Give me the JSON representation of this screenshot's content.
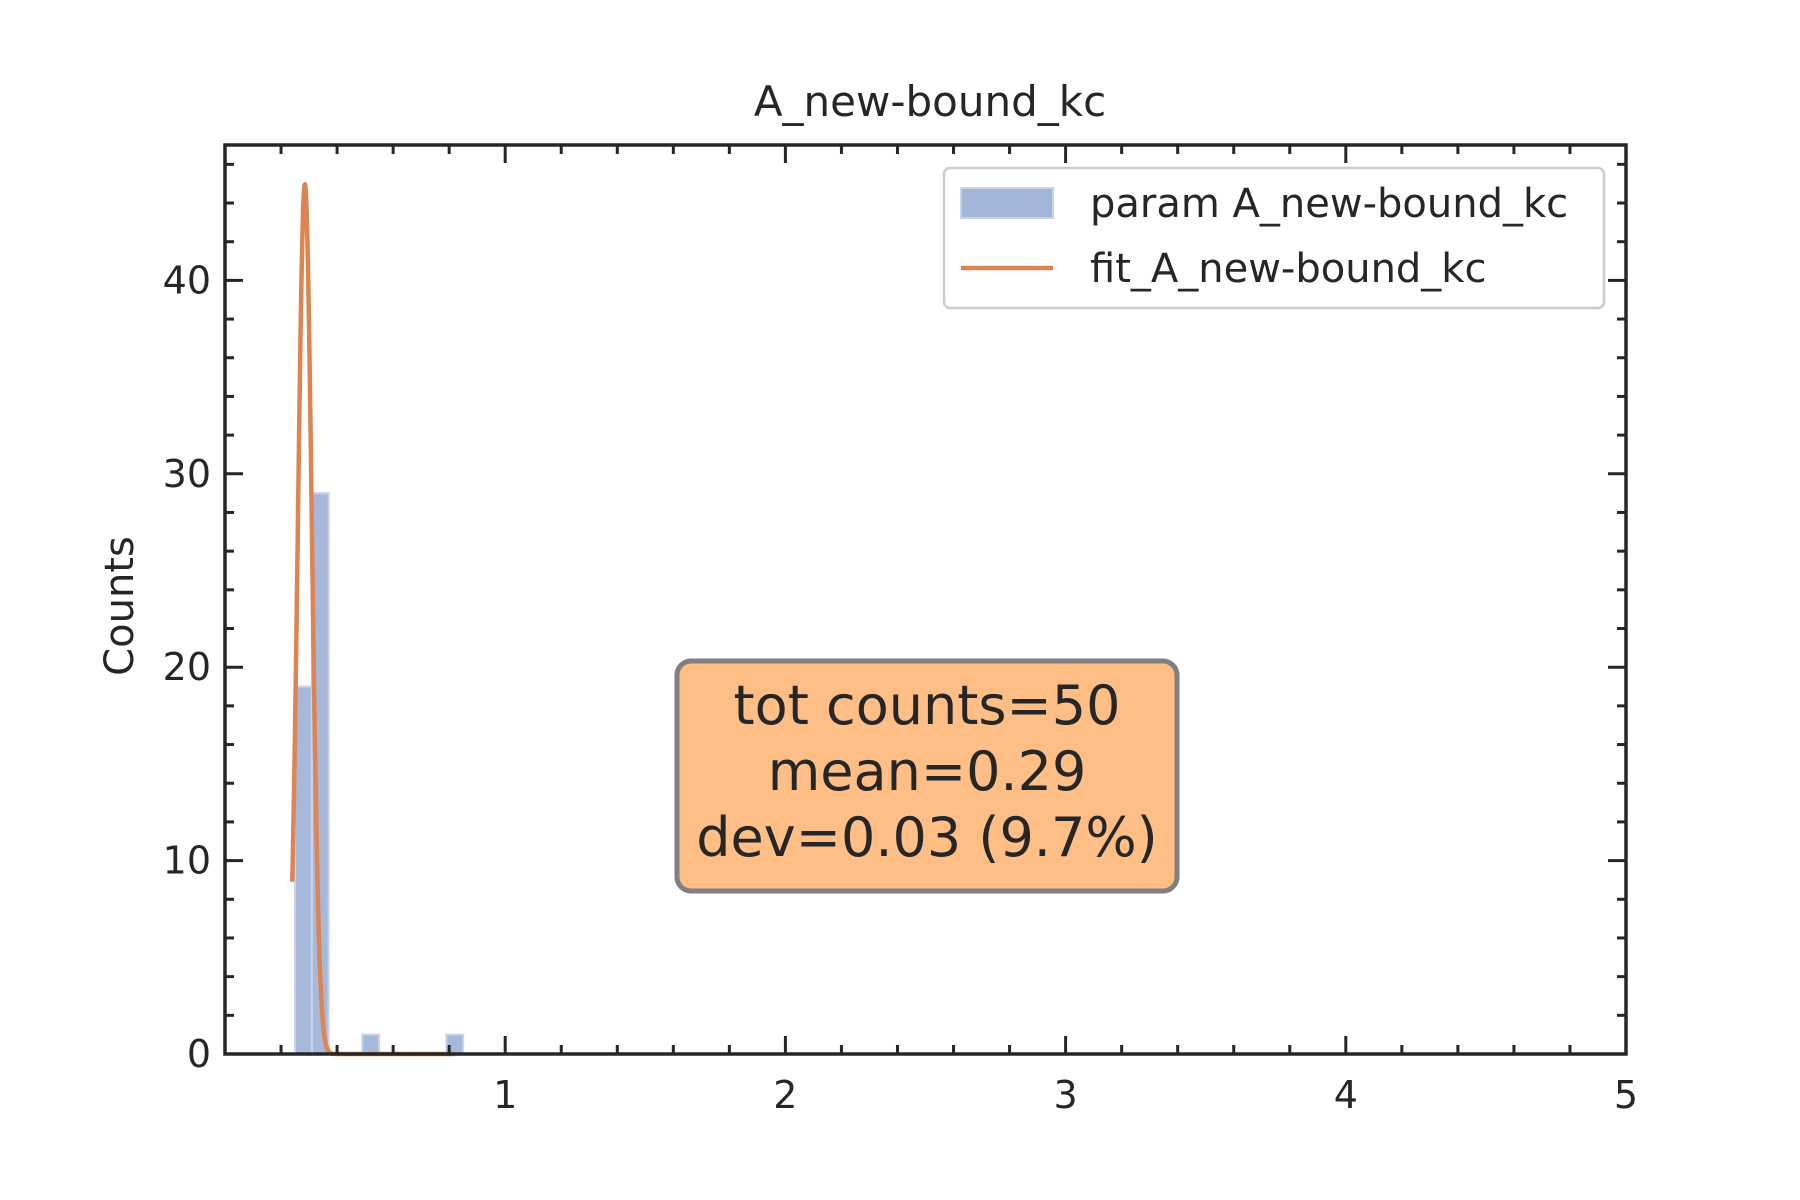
{
  "chart_data": {
    "type": "bar",
    "title": "A_new-bound_kc",
    "xlabel": "",
    "ylabel": "Counts",
    "xlim": [
      0,
      5
    ],
    "ylim": [
      0,
      47
    ],
    "xticks": [
      1,
      2,
      3,
      4,
      5
    ],
    "yticks": [
      0,
      10,
      20,
      30,
      40
    ],
    "grid": false,
    "legend_position": "top-right",
    "series": [
      {
        "name": "param A_new-bound_kc",
        "kind": "histogram",
        "color": "#a2b5d9",
        "bins": [
          {
            "x0": 0.25,
            "x1": 0.31,
            "count": 19
          },
          {
            "x0": 0.31,
            "x1": 0.37,
            "count": 29
          },
          {
            "x0": 0.37,
            "x1": 0.43,
            "count": 0
          },
          {
            "x0": 0.43,
            "x1": 0.49,
            "count": 0
          },
          {
            "x0": 0.49,
            "x1": 0.55,
            "count": 1
          },
          {
            "x0": 0.55,
            "x1": 0.61,
            "count": 0
          },
          {
            "x0": 0.61,
            "x1": 0.67,
            "count": 0
          },
          {
            "x0": 0.67,
            "x1": 0.73,
            "count": 0
          },
          {
            "x0": 0.73,
            "x1": 0.79,
            "count": 0
          },
          {
            "x0": 0.79,
            "x1": 0.85,
            "count": 1
          }
        ]
      },
      {
        "name": "fit_A_new-bound_kc",
        "kind": "gaussian-fit",
        "color": "#dd8452",
        "amplitude": 45,
        "mean": 0.285,
        "sigma": 0.025,
        "x_range": [
          0.24,
          0.82
        ]
      }
    ],
    "annotation": {
      "lines": [
        "tot counts=50",
        "mean=0.29",
        "dev=0.03 (9.7%)"
      ],
      "background": "#ffbe86",
      "border": "#808080"
    }
  }
}
